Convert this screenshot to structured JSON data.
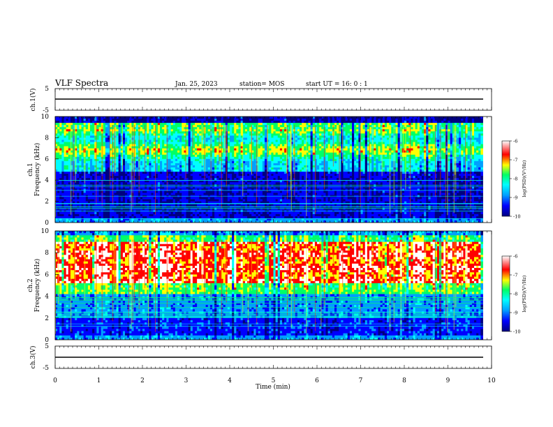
{
  "header": {
    "title": "VLF Spectra",
    "date": "Jan. 25, 2023",
    "station": "station= MOS",
    "start": "start  UT =   16: 0  : 1"
  },
  "colors": {
    "spectrogram_colormap": [
      "#000080",
      "#0000ff",
      "#00a0ff",
      "#00ffff",
      "#00ff66",
      "#ffff00",
      "#ff0000",
      "#ffffff"
    ]
  },
  "chart_data": [
    {
      "type": "line",
      "name": "channel-1-waveform",
      "ylabel": "ch.1(V)",
      "ylim": [
        -5,
        5
      ],
      "yticks": [
        5,
        -5
      ],
      "xlim": [
        0,
        10
      ],
      "x": [
        0,
        9.8
      ],
      "y": [
        0,
        0
      ]
    },
    {
      "type": "heatmap",
      "name": "channel-1-spectrogram",
      "ylabel": "ch.1\nFrequency (kHz)",
      "ylim": [
        0,
        10
      ],
      "yticks": [
        0,
        2,
        4,
        6,
        8,
        10
      ],
      "xlim": [
        0,
        10
      ],
      "x_extent": [
        0,
        9.8
      ],
      "colorbar": {
        "label": "log(PSD)(V²/Hz)",
        "range": [
          -10,
          -6
        ],
        "ticks": [
          "-6",
          "-7",
          "-8",
          "-9",
          "-10"
        ]
      },
      "description_profile": "bright green/yellow band 6–9 kHz with red streaks, dark blue below 5 kHz, horizontal interference lines below 4 kHz"
    },
    {
      "type": "heatmap",
      "name": "channel-2-spectrogram",
      "ylabel": "ch.2\nFrequency (kHz)",
      "ylim": [
        0,
        10
      ],
      "yticks": [
        0,
        2,
        4,
        6,
        8,
        10
      ],
      "xlim": [
        0,
        10
      ],
      "x_extent": [
        0,
        9.8
      ],
      "colorbar": {
        "label": "log(PSD)(V²/Hz)",
        "range": [
          -10,
          -6
        ],
        "ticks": [
          "-6",
          "-7",
          "-8",
          "-9",
          "-10"
        ]
      },
      "description_profile": "intense red/white band 5–9 kHz, yellow-green edges, blue with interference lines below 4 kHz"
    },
    {
      "type": "line",
      "name": "channel-3-waveform",
      "ylabel": "ch.3(V)",
      "ylim": [
        -5,
        5
      ],
      "yticks": [
        5,
        -5
      ],
      "xlim": [
        0,
        10
      ],
      "x": [
        0,
        9.8
      ],
      "y": [
        0,
        0
      ]
    }
  ],
  "xaxis": {
    "label": "Time  (min)",
    "ticks": [
      "0",
      "1",
      "2",
      "3",
      "4",
      "5",
      "6",
      "7",
      "8",
      "9",
      "10"
    ],
    "range": [
      0,
      10
    ]
  }
}
